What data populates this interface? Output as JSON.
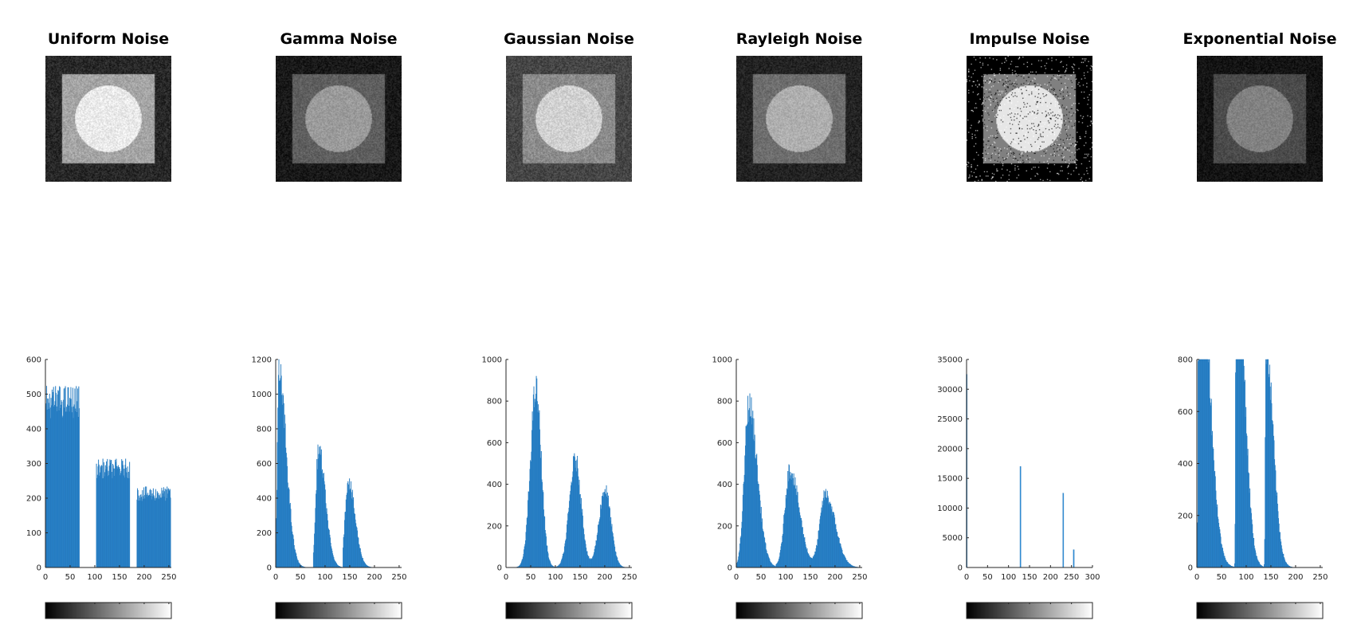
{
  "colors": {
    "bar": "#2f8fd8",
    "axis": "#262626",
    "title": "#000000"
  },
  "chart_data": [
    {
      "type": "bar",
      "title": "Uniform Noise",
      "image_icon": "noisy-test-image-uniform",
      "image_tones": {
        "background": 40,
        "square": 165,
        "circle": 235,
        "noise": 0.1
      },
      "xlim": [
        0,
        255
      ],
      "ylim": [
        0,
        600
      ],
      "xticks": [
        0,
        50,
        100,
        150,
        200,
        250
      ],
      "yticks": [
        0,
        100,
        200,
        300,
        400,
        500,
        600
      ],
      "components": [
        {
          "shape": "uniform",
          "from": 0,
          "to": 68,
          "height": 478
        },
        {
          "shape": "uniform",
          "from": 103,
          "to": 170,
          "height": 285
        },
        {
          "shape": "uniform",
          "from": 185,
          "to": 253,
          "height": 212
        }
      ],
      "colorbar": {
        "icon": "grayscale-colorbar"
      }
    },
    {
      "type": "bar",
      "title": "Gamma Noise",
      "image_icon": "noisy-test-image-gamma",
      "image_tones": {
        "background": 25,
        "square": 95,
        "circle": 155,
        "noise": 0.08
      },
      "xlim": [
        0,
        255
      ],
      "ylim": [
        0,
        1200
      ],
      "xticks": [
        0,
        50,
        100,
        150,
        200,
        250
      ],
      "yticks": [
        0,
        200,
        400,
        600,
        800,
        1000,
        1200
      ],
      "components": [
        {
          "shape": "skew",
          "start": 0,
          "peak": 6,
          "height": 1110,
          "rise": 3,
          "fall": 15
        },
        {
          "shape": "skew",
          "start": 76,
          "peak": 86,
          "height": 680,
          "rise": 5,
          "fall": 14
        },
        {
          "shape": "skew",
          "start": 136,
          "peak": 146,
          "height": 500,
          "rise": 6,
          "fall": 14
        }
      ],
      "colorbar": {
        "icon": "grayscale-colorbar"
      }
    },
    {
      "type": "bar",
      "title": "Gaussian Noise",
      "image_icon": "noisy-test-image-gaussian",
      "image_tones": {
        "background": 70,
        "square": 140,
        "circle": 210,
        "noise": 0.1
      },
      "xlim": [
        0,
        255
      ],
      "ylim": [
        0,
        1000
      ],
      "xticks": [
        0,
        50,
        100,
        150,
        200,
        250
      ],
      "yticks": [
        0,
        200,
        400,
        600,
        800,
        1000
      ],
      "components": [
        {
          "shape": "gauss",
          "mu": 60,
          "sigma": 11,
          "height": 850
        },
        {
          "shape": "gauss",
          "mu": 140,
          "sigma": 12,
          "height": 515
        },
        {
          "shape": "gauss",
          "mu": 200,
          "sigma": 12,
          "height": 375
        }
      ],
      "colorbar": {
        "icon": "grayscale-colorbar"
      }
    },
    {
      "type": "bar",
      "title": "Rayleigh Noise",
      "image_icon": "noisy-test-image-rayleigh",
      "image_tones": {
        "background": 35,
        "square": 110,
        "circle": 175,
        "noise": 0.08
      },
      "xlim": [
        0,
        255
      ],
      "ylim": [
        0,
        1000
      ],
      "xticks": [
        0,
        50,
        100,
        150,
        200,
        250
      ],
      "yticks": [
        0,
        200,
        400,
        600,
        800,
        1000
      ],
      "components": [
        {
          "shape": "skew",
          "start": 0,
          "peak": 25,
          "height": 780,
          "rise": 9,
          "fall": 17
        },
        {
          "shape": "skew",
          "start": 80,
          "peak": 108,
          "height": 470,
          "rise": 10,
          "fall": 19
        },
        {
          "shape": "skew",
          "start": 148,
          "peak": 180,
          "height": 350,
          "rise": 11,
          "fall": 20
        }
      ],
      "colorbar": {
        "icon": "grayscale-colorbar"
      }
    },
    {
      "type": "bar",
      "title": "Impulse Noise",
      "image_icon": "noisy-test-image-impulse",
      "image_tones": {
        "background": 0,
        "square": 128,
        "circle": 230,
        "noise": 0.0,
        "salt_pepper": 0.06
      },
      "xlim": [
        0,
        300
      ],
      "ylim": [
        0,
        35000
      ],
      "xticks": [
        0,
        50,
        100,
        150,
        200,
        250,
        300
      ],
      "yticks": [
        0,
        5000,
        10000,
        15000,
        20000,
        25000,
        30000,
        35000
      ],
      "spikes": [
        {
          "x": 0,
          "y": 32500
        },
        {
          "x": 128,
          "y": 17000
        },
        {
          "x": 230,
          "y": 12500
        },
        {
          "x": 255,
          "y": 3000
        }
      ],
      "colorbar": {
        "icon": "grayscale-colorbar"
      }
    },
    {
      "type": "bar",
      "title": "Exponential Noise",
      "image_icon": "noisy-test-image-exponential",
      "image_tones": {
        "background": 20,
        "square": 75,
        "circle": 130,
        "noise": 0.07
      },
      "xlim": [
        0,
        255
      ],
      "ylim": [
        0,
        800
      ],
      "xticks": [
        0,
        50,
        100,
        150,
        200,
        250
      ],
      "yticks": [
        0,
        200,
        400,
        600,
        800
      ],
      "components": [
        {
          "shape": "skew",
          "start": 0,
          "peak": 3,
          "height": 1400,
          "rise": 1,
          "fall": 20
        },
        {
          "shape": "skew",
          "start": 76,
          "peak": 79,
          "height": 1300,
          "rise": 1,
          "fall": 16
        },
        {
          "shape": "skew",
          "start": 136,
          "peak": 139,
          "height": 850,
          "rise": 1,
          "fall": 15
        }
      ],
      "colorbar": {
        "icon": "grayscale-colorbar"
      }
    }
  ]
}
